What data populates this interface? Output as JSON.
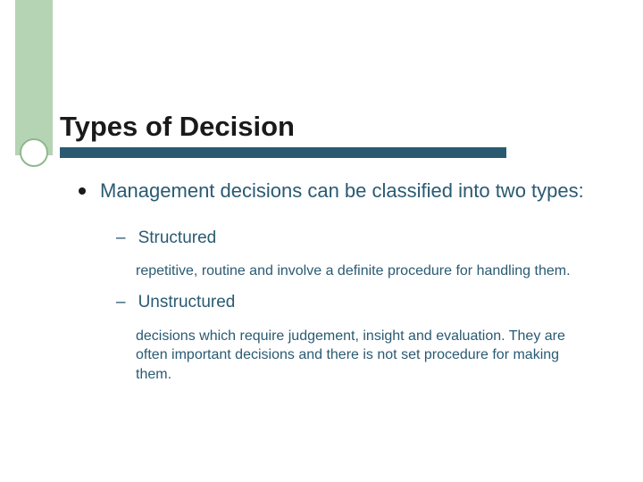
{
  "slide": {
    "title": "Types of Decision",
    "title_fontsize": 31,
    "title_color": "#1a1a1a",
    "body_color": "#2a5a72",
    "sidebar_band_color": "#b4d4b4",
    "sidebar_circle_border": "#8fb88f",
    "underline_bar_color": "#2a5a72",
    "background_color": "#ffffff",
    "bullet_l1": {
      "text": "Management decisions can be classified into two types:",
      "fontsize": 22
    },
    "items": [
      {
        "label": "Structured",
        "label_fontsize": 19,
        "desc": "repetitive, routine and involve a definite procedure for handling them.",
        "desc_fontsize": 16
      },
      {
        "label": "Unstructured",
        "label_fontsize": 19,
        "desc": "decisions which require judgement, insight and evaluation. They are often important decisions and there is not set procedure for making them.",
        "desc_fontsize": 16
      }
    ]
  }
}
